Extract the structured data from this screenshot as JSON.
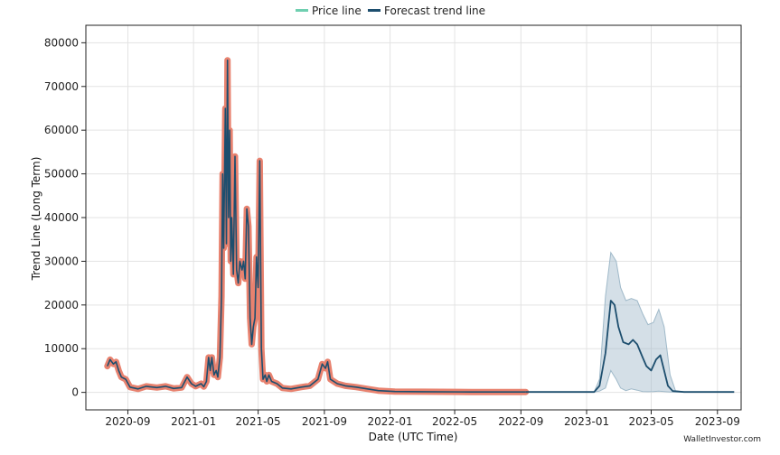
{
  "chart_data": {
    "type": "line",
    "xlabel": "Date (UTC Time)",
    "ylabel": "Trend Line (Long Term)",
    "ylim": [
      -4000,
      84000
    ],
    "y_ticks": [
      0,
      10000,
      20000,
      30000,
      40000,
      50000,
      60000,
      70000,
      80000
    ],
    "x_ticks": [
      "2020-09",
      "2021-01",
      "2021-05",
      "2021-09",
      "2022-01",
      "2022-05",
      "2022-09",
      "2023-01",
      "2023-05",
      "2023-09"
    ],
    "xlim": [
      "2020-06-15",
      "2023-10-15"
    ],
    "grid": true,
    "legend_position": "top-center",
    "legend": [
      {
        "label": "Price line",
        "color": "#6fcfb0"
      },
      {
        "label": "Forecast trend line",
        "color": "#1d4e6e"
      }
    ],
    "colors": {
      "price_line": "#e8826f",
      "trend_line": "#1d4e6e",
      "band_fill": "#9fb9c9",
      "grid": "#e3e3e3",
      "axis": "#222222"
    },
    "watermark": "WalletInvestor.com",
    "series": [
      {
        "name": "Price line",
        "points": [
          [
            "2020-07-25",
            6000
          ],
          [
            "2020-07-30",
            7500
          ],
          [
            "2020-08-05",
            6500
          ],
          [
            "2020-08-10",
            7000
          ],
          [
            "2020-08-15",
            5000
          ],
          [
            "2020-08-20",
            3500
          ],
          [
            "2020-08-28",
            3000
          ],
          [
            "2020-09-05",
            1200
          ],
          [
            "2020-09-20",
            800
          ],
          [
            "2020-10-05",
            1400
          ],
          [
            "2020-10-25",
            1100
          ],
          [
            "2020-11-10",
            1400
          ],
          [
            "2020-11-25",
            900
          ],
          [
            "2020-12-10",
            1100
          ],
          [
            "2020-12-20",
            3500
          ],
          [
            "2020-12-28",
            2000
          ],
          [
            "2021-01-05",
            1400
          ],
          [
            "2021-01-15",
            2000
          ],
          [
            "2021-01-20",
            1300
          ],
          [
            "2021-01-25",
            2500
          ],
          [
            "2021-01-29",
            8000
          ],
          [
            "2021-02-01",
            5000
          ],
          [
            "2021-02-04",
            8000
          ],
          [
            "2021-02-08",
            4000
          ],
          [
            "2021-02-12",
            5000
          ],
          [
            "2021-02-15",
            3500
          ],
          [
            "2021-02-19",
            8000
          ],
          [
            "2021-02-22",
            22000
          ],
          [
            "2021-02-24",
            50000
          ],
          [
            "2021-02-26",
            33000
          ],
          [
            "2021-03-01",
            65000
          ],
          [
            "2021-03-03",
            34000
          ],
          [
            "2021-03-05",
            76000
          ],
          [
            "2021-03-07",
            40000
          ],
          [
            "2021-03-09",
            60000
          ],
          [
            "2021-03-11",
            30000
          ],
          [
            "2021-03-13",
            40000
          ],
          [
            "2021-03-16",
            27000
          ],
          [
            "2021-03-19",
            54000
          ],
          [
            "2021-03-22",
            28000
          ],
          [
            "2021-03-25",
            25000
          ],
          [
            "2021-03-28",
            30000
          ],
          [
            "2021-04-01",
            28000
          ],
          [
            "2021-04-04",
            30000
          ],
          [
            "2021-04-07",
            26000
          ],
          [
            "2021-04-10",
            42000
          ],
          [
            "2021-04-13",
            38000
          ],
          [
            "2021-04-16",
            17000
          ],
          [
            "2021-04-19",
            11000
          ],
          [
            "2021-04-22",
            15000
          ],
          [
            "2021-04-25",
            17000
          ],
          [
            "2021-04-28",
            31000
          ],
          [
            "2021-05-01",
            24000
          ],
          [
            "2021-05-04",
            53000
          ],
          [
            "2021-05-07",
            10000
          ],
          [
            "2021-05-10",
            3000
          ],
          [
            "2021-05-14",
            4000
          ],
          [
            "2021-05-17",
            2500
          ],
          [
            "2021-05-21",
            4000
          ],
          [
            "2021-05-26",
            2500
          ],
          [
            "2021-06-05",
            2000
          ],
          [
            "2021-06-15",
            1000
          ],
          [
            "2021-07-01",
            800
          ],
          [
            "2021-07-20",
            1200
          ],
          [
            "2021-08-05",
            1500
          ],
          [
            "2021-08-20",
            3000
          ],
          [
            "2021-08-28",
            6500
          ],
          [
            "2021-09-03",
            5500
          ],
          [
            "2021-09-07",
            7000
          ],
          [
            "2021-09-12",
            3000
          ],
          [
            "2021-09-25",
            2000
          ],
          [
            "2021-10-10",
            1500
          ],
          [
            "2021-10-30",
            1200
          ],
          [
            "2021-11-20",
            800
          ],
          [
            "2021-12-10",
            400
          ],
          [
            "2022-01-10",
            200
          ],
          [
            "2022-03-01",
            150
          ],
          [
            "2022-06-01",
            100
          ],
          [
            "2022-09-10",
            100
          ]
        ]
      },
      {
        "name": "Forecast trend line",
        "points": [
          [
            "2022-09-10",
            100
          ],
          [
            "2023-01-15",
            100
          ],
          [
            "2023-01-25",
            1500
          ],
          [
            "2023-02-05",
            9000
          ],
          [
            "2023-02-15",
            21000
          ],
          [
            "2023-02-22",
            20000
          ],
          [
            "2023-03-01",
            15000
          ],
          [
            "2023-03-10",
            11500
          ],
          [
            "2023-03-20",
            11000
          ],
          [
            "2023-03-28",
            12000
          ],
          [
            "2023-04-05",
            11000
          ],
          [
            "2023-04-15",
            8000
          ],
          [
            "2023-04-22",
            6000
          ],
          [
            "2023-05-01",
            5000
          ],
          [
            "2023-05-10",
            7500
          ],
          [
            "2023-05-18",
            8500
          ],
          [
            "2023-05-25",
            5000
          ],
          [
            "2023-06-01",
            1500
          ],
          [
            "2023-06-10",
            300
          ],
          [
            "2023-07-01",
            100
          ],
          [
            "2023-09-01",
            100
          ],
          [
            "2023-10-02",
            100
          ]
        ]
      }
    ],
    "forecast_band": [
      [
        "2023-01-15",
        100,
        100
      ],
      [
        "2023-01-25",
        300,
        3000
      ],
      [
        "2023-02-05",
        1000,
        22000
      ],
      [
        "2023-02-15",
        5000,
        32000
      ],
      [
        "2023-02-25",
        3000,
        30000
      ],
      [
        "2023-03-05",
        1000,
        24000
      ],
      [
        "2023-03-15",
        400,
        21000
      ],
      [
        "2023-03-25",
        800,
        21500
      ],
      [
        "2023-04-05",
        500,
        21000
      ],
      [
        "2023-04-15",
        200,
        18000
      ],
      [
        "2023-04-25",
        150,
        15500
      ],
      [
        "2023-05-05",
        200,
        16000
      ],
      [
        "2023-05-15",
        300,
        19000
      ],
      [
        "2023-05-25",
        200,
        15000
      ],
      [
        "2023-06-05",
        100,
        4000
      ],
      [
        "2023-06-15",
        100,
        400
      ],
      [
        "2023-07-01",
        100,
        100
      ]
    ]
  }
}
